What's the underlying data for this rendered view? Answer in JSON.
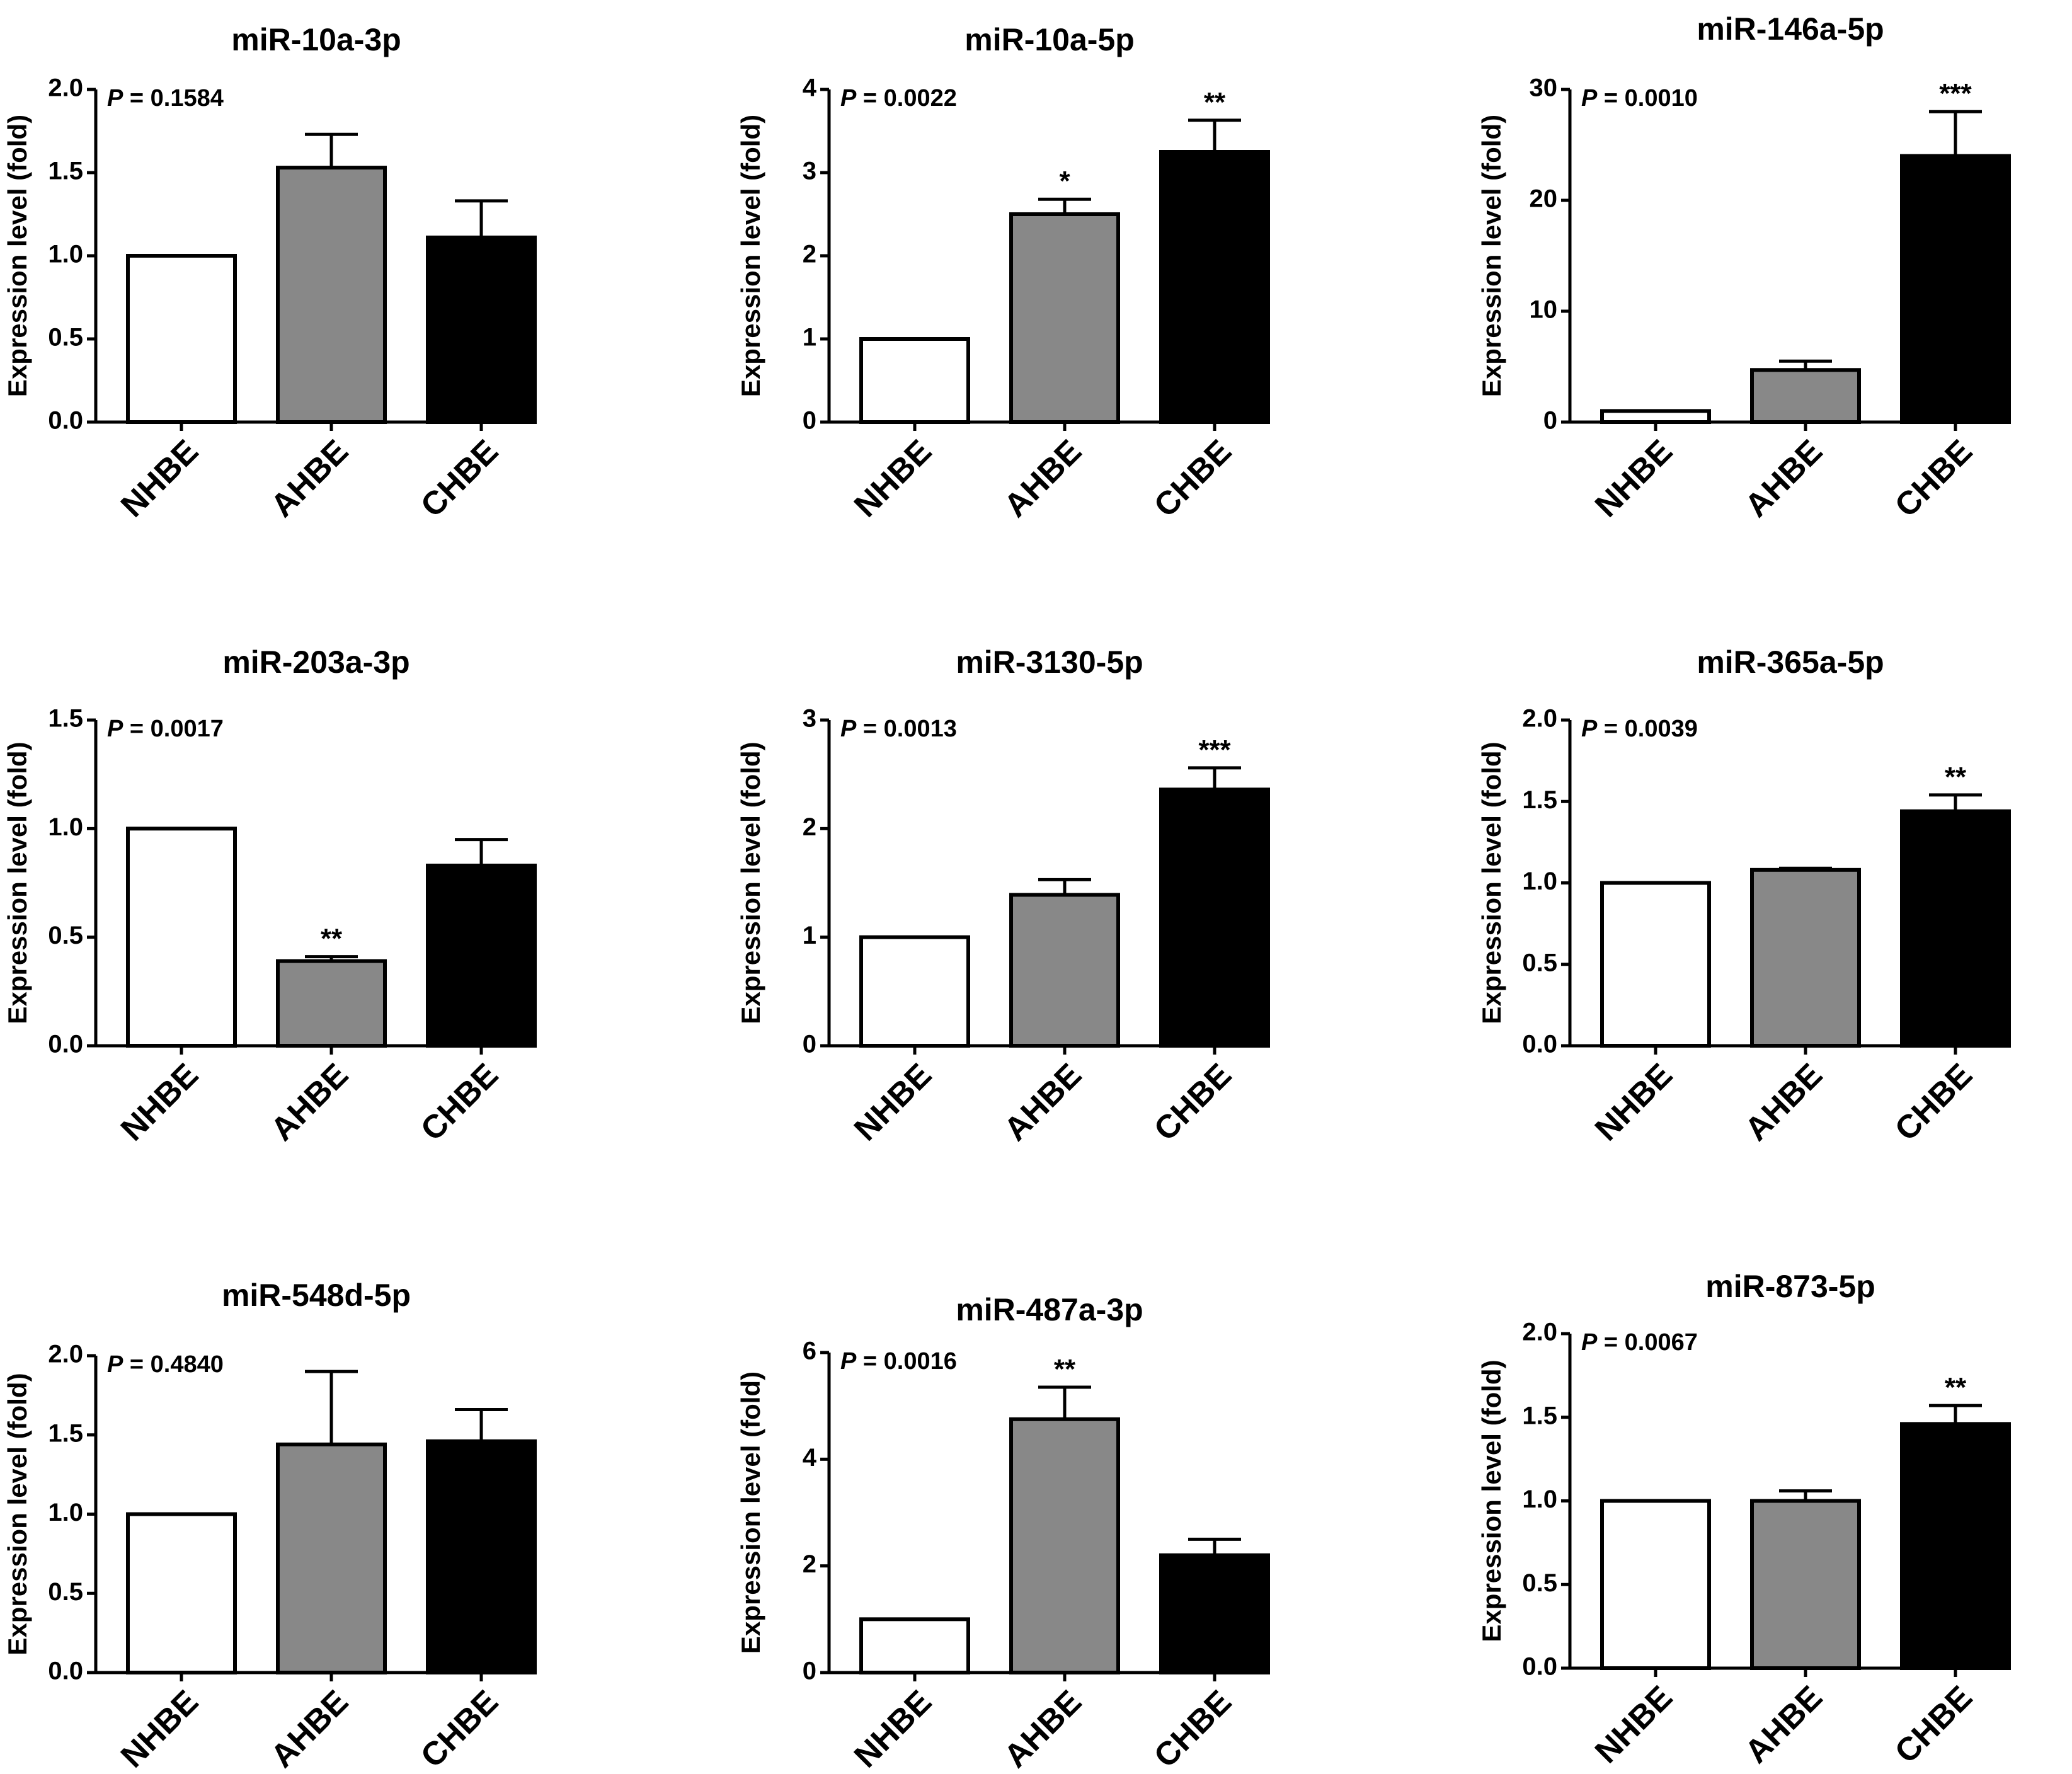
{
  "chart_data": [
    {
      "type": "bar",
      "title": "miR-10a-3p",
      "ylabel": "Expression level (fold)",
      "p_value_label": "= 0.1584",
      "categories": [
        "NHBE",
        "AHBE",
        "CHBE"
      ],
      "values": [
        1.0,
        1.53,
        1.11
      ],
      "errors": [
        0,
        0.2,
        0.22
      ],
      "significance": [
        "",
        "",
        ""
      ],
      "ylim": [
        0,
        2.0
      ],
      "yticks": [
        "0.0",
        "0.5",
        "1.0",
        "1.5",
        "2.0"
      ],
      "bar_colors": [
        "#ffffff",
        "#888888",
        "#000000"
      ]
    },
    {
      "type": "bar",
      "title": "miR-10a-5p",
      "ylabel": "Expression level (fold)",
      "p_value_label": "= 0.0022",
      "categories": [
        "NHBE",
        "AHBE",
        "CHBE"
      ],
      "values": [
        1.0,
        2.5,
        3.25
      ],
      "errors": [
        0,
        0.18,
        0.38
      ],
      "significance": [
        "",
        "*",
        "**"
      ],
      "ylim": [
        0,
        4
      ],
      "yticks": [
        "0",
        "1",
        "2",
        "3",
        "4"
      ],
      "bar_colors": [
        "#ffffff",
        "#888888",
        "#000000"
      ]
    },
    {
      "type": "bar",
      "title": "miR-146a-5p",
      "ylabel": "Expression level (fold)",
      "p_value_label": "= 0.0010",
      "categories": [
        "NHBE",
        "AHBE",
        "CHBE"
      ],
      "values": [
        1.0,
        4.7,
        24.0
      ],
      "errors": [
        0,
        0.8,
        4.0
      ],
      "significance": [
        "",
        "",
        "***"
      ],
      "ylim": [
        0,
        30
      ],
      "yticks": [
        "0",
        "10",
        "20",
        "30"
      ],
      "bar_colors": [
        "#ffffff",
        "#888888",
        "#000000"
      ]
    },
    {
      "type": "bar",
      "title": "miR-203a-3p",
      "ylabel": "Expression level (fold)",
      "p_value_label": "= 0.0017",
      "categories": [
        "NHBE",
        "AHBE",
        "CHBE"
      ],
      "values": [
        1.0,
        0.39,
        0.83
      ],
      "errors": [
        0,
        0.02,
        0.12
      ],
      "significance": [
        "",
        "**",
        ""
      ],
      "ylim": [
        0,
        1.5
      ],
      "yticks": [
        "0.0",
        "0.5",
        "1.0",
        "1.5"
      ],
      "bar_colors": [
        "#ffffff",
        "#888888",
        "#000000"
      ]
    },
    {
      "type": "bar",
      "title": "miR-3130-5p",
      "ylabel": "Expression level (fold)",
      "p_value_label": "= 0.0013",
      "categories": [
        "NHBE",
        "AHBE",
        "CHBE"
      ],
      "values": [
        1.0,
        1.39,
        2.36
      ],
      "errors": [
        0,
        0.14,
        0.2
      ],
      "significance": [
        "",
        "",
        "***"
      ],
      "ylim": [
        0,
        3
      ],
      "yticks": [
        "0",
        "1",
        "2",
        "3"
      ],
      "bar_colors": [
        "#ffffff",
        "#888888",
        "#000000"
      ]
    },
    {
      "type": "bar",
      "title": "miR-365a-5p",
      "ylabel": "Expression level (fold)",
      "p_value_label": "= 0.0039",
      "categories": [
        "NHBE",
        "AHBE",
        "CHBE"
      ],
      "values": [
        1.0,
        1.08,
        1.44
      ],
      "errors": [
        0,
        0.01,
        0.1
      ],
      "significance": [
        "",
        "",
        "**"
      ],
      "ylim": [
        0,
        2.0
      ],
      "yticks": [
        "0.0",
        "0.5",
        "1.0",
        "1.5",
        "2.0"
      ],
      "bar_colors": [
        "#ffffff",
        "#888888",
        "#000000"
      ]
    },
    {
      "type": "bar",
      "title": "miR-548d-5p",
      "ylabel": "Expression level (fold)",
      "p_value_label": "= 0.4840",
      "categories": [
        "NHBE",
        "AHBE",
        "CHBE"
      ],
      "values": [
        1.0,
        1.44,
        1.46
      ],
      "errors": [
        0,
        0.46,
        0.2
      ],
      "significance": [
        "",
        "",
        ""
      ],
      "ylim": [
        0,
        2.0
      ],
      "yticks": [
        "0.0",
        "0.5",
        "1.0",
        "1.5",
        "2.0"
      ],
      "bar_colors": [
        "#ffffff",
        "#888888",
        "#000000"
      ]
    },
    {
      "type": "bar",
      "title": "miR-487a-3p",
      "ylabel": "Expression level (fold)",
      "p_value_label": "= 0.0016",
      "categories": [
        "NHBE",
        "AHBE",
        "CHBE"
      ],
      "values": [
        1.0,
        4.75,
        2.2
      ],
      "errors": [
        0,
        0.6,
        0.3
      ],
      "significance": [
        "",
        "**",
        ""
      ],
      "ylim": [
        0,
        6
      ],
      "yticks": [
        "0",
        "2",
        "4",
        "6"
      ],
      "bar_colors": [
        "#ffffff",
        "#888888",
        "#000000"
      ]
    },
    {
      "type": "bar",
      "title": "miR-873-5p",
      "ylabel": "Expression level (fold)",
      "p_value_label": "= 0.0067",
      "categories": [
        "NHBE",
        "AHBE",
        "CHBE"
      ],
      "values": [
        1.0,
        1.0,
        1.46
      ],
      "errors": [
        0,
        0.06,
        0.11
      ],
      "significance": [
        "",
        "",
        "**"
      ],
      "ylim": [
        0,
        2.0
      ],
      "yticks": [
        "0.0",
        "0.5",
        "1.0",
        "1.5",
        "2.0"
      ],
      "bar_colors": [
        "#ffffff",
        "#888888",
        "#000000"
      ]
    }
  ],
  "p_symbol": "P"
}
